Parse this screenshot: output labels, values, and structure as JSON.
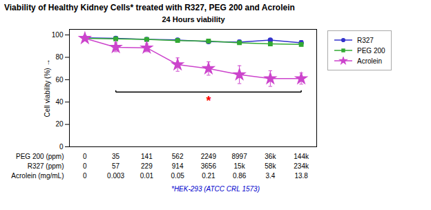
{
  "chart_data": {
    "type": "line",
    "title": "Viability of Healthy Kidney Cells* treated with R327, PEG 200 and Acrolein",
    "subtitle": "24 Hours viability",
    "footnote": "*HEK-293 (ATCC CRL 1573)",
    "ylabel": "Cell viability (%)",
    "ylim": [
      0,
      105
    ],
    "yticks": [
      0,
      20,
      40,
      60,
      80,
      100
    ],
    "grid": false,
    "legend": "right",
    "tick_labels": "y",
    "category_rows": [
      {
        "name": "PEG 200 (ppm)",
        "labels": [
          "0",
          "35",
          "141",
          "562",
          "2249",
          "8997",
          "36k",
          "144k"
        ]
      },
      {
        "name": "R327 (ppm)",
        "labels": [
          "0",
          "57",
          "229",
          "914",
          "3656",
          "15k",
          "58k",
          "234k"
        ]
      },
      {
        "name": "Acrolein (mg/mL)",
        "labels": [
          "0",
          "0.003",
          "0.01",
          "0.05",
          "0.21",
          "0.86",
          "3.4",
          "13.8"
        ]
      }
    ],
    "series": [
      {
        "name": "R327",
        "color": "#3333cc",
        "marker": "circle",
        "values": [
          97.5,
          97.0,
          96.0,
          95.5,
          94.0,
          93.5,
          95.5,
          93.0
        ],
        "errors": [
          1.5,
          1.5,
          1.5,
          1.5,
          1.5,
          2.0,
          1.5,
          2.0
        ]
      },
      {
        "name": "PEG 200",
        "color": "#33aa33",
        "marker": "square",
        "values": [
          97.0,
          96.5,
          96.0,
          95.0,
          94.5,
          93.0,
          92.0,
          91.5
        ],
        "errors": [
          1.5,
          1.5,
          1.5,
          1.5,
          1.5,
          1.5,
          1.5,
          1.5
        ]
      },
      {
        "name": "Acrolein",
        "color": "#cc44cc",
        "marker": "star",
        "values": [
          97.0,
          89.0,
          88.5,
          73.5,
          70.0,
          64.5,
          61.0,
          61.0
        ],
        "errors": [
          2.0,
          4.0,
          3.5,
          6.0,
          6.0,
          8.0,
          7.0,
          5.0
        ]
      }
    ],
    "bracket": {
      "x1": 1,
      "x2": 7,
      "y": 49,
      "height": 1.5
    },
    "annotations": [
      {
        "text": "*",
        "x": 4,
        "y": 45,
        "color": "red"
      }
    ]
  }
}
